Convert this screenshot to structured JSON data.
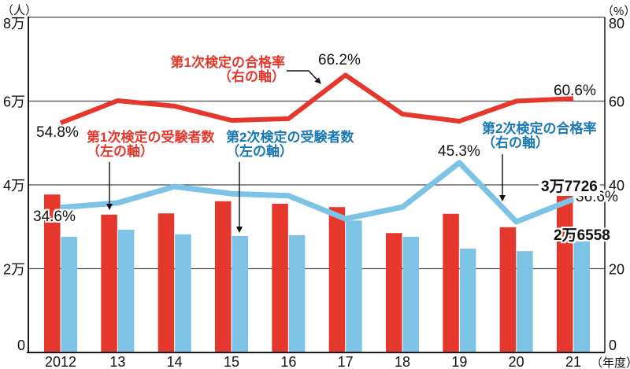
{
  "chart_data": {
    "type": "bar+line",
    "title": "",
    "x_axis": {
      "unit_label": "（年度）",
      "categories": [
        "2012",
        "13",
        "14",
        "15",
        "16",
        "17",
        "18",
        "19",
        "20",
        "21"
      ]
    },
    "left_axis": {
      "unit_label": "（人）",
      "ticks": [
        "8万",
        "6万",
        "4万",
        "2万",
        "0"
      ],
      "range": [
        0,
        80000
      ]
    },
    "right_axis": {
      "unit_label": "（%）",
      "ticks": [
        "80",
        "60",
        "40",
        "20",
        "0"
      ],
      "range": [
        0,
        80
      ]
    },
    "grid": true,
    "legend_position": "annotated-callouts",
    "series": [
      {
        "name": "第1次検定の受験者数",
        "type": "bar",
        "axis": "left",
        "color": "#e5372c",
        "values": [
          37700,
          32900,
          33200,
          36100,
          35500,
          34700,
          28500,
          33100,
          29900,
          37726
        ]
      },
      {
        "name": "第2次検定の受験者数",
        "type": "bar",
        "axis": "left",
        "color": "#7cc3e6",
        "values": [
          27600,
          29300,
          28200,
          27800,
          28000,
          31500,
          27600,
          24800,
          24200,
          26558
        ]
      },
      {
        "name": "第1次検定の合格率",
        "type": "line",
        "axis": "right",
        "color": "#e5372c",
        "values": [
          54.8,
          60.1,
          58.8,
          55.4,
          55.8,
          66.2,
          56.9,
          55.2,
          60.0,
          60.6
        ]
      },
      {
        "name": "第2次検定の合格率",
        "type": "line",
        "axis": "right",
        "color": "#7cc3e6",
        "values": [
          34.6,
          35.7,
          39.6,
          37.9,
          37.4,
          31.9,
          34.7,
          45.3,
          31.2,
          36.6
        ]
      }
    ],
    "point_labels": {
      "rate1_2012": "54.8%",
      "rate2_2012": "34.6%",
      "rate1_2017": "66.2%",
      "rate2_2019": "45.3%",
      "rate1_2021": "60.6%",
      "rate2_2021": "36.6%",
      "bar1_2021": "3万7726",
      "bar2_2021": "2万6558"
    }
  },
  "callouts": {
    "first_pass_rate": {
      "line1": "第1次検定の合格率",
      "line2": "（右の軸）"
    },
    "first_examinees": {
      "line1": "第1次検定の受験者数",
      "line2": "（左の軸）"
    },
    "second_examinees": {
      "line1": "第2次検定の受験者数",
      "line2": "（左の軸）"
    },
    "second_pass_rate": {
      "line1": "第2次検定の合格率",
      "line2": "（右の軸）"
    }
  },
  "colors": {
    "red": "#e5372c",
    "light_blue": "#7cc3e6",
    "blue_text": "#1878b4",
    "grid": "#4a4a4a",
    "axis": "#1a1a1a",
    "pointer": "#111111"
  }
}
